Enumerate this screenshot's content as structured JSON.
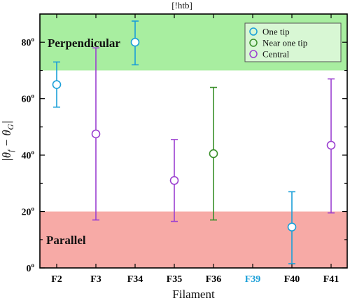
{
  "header_note": "[!htb]",
  "chart_data": {
    "type": "scatter",
    "xlabel": "Filament",
    "ylabel_main": "|θ",
    "ylabel_sub1": "f",
    "ylabel_mid": " − θ",
    "ylabel_sub2": "G",
    "ylabel_end": "|",
    "ylim": [
      0,
      90
    ],
    "yticks": [
      {
        "value": 0,
        "label": "0"
      },
      {
        "value": 20,
        "label": "20"
      },
      {
        "value": 40,
        "label": "40"
      },
      {
        "value": 60,
        "label": "60"
      },
      {
        "value": 80,
        "label": "80"
      }
    ],
    "ytick_suffix": "o",
    "categories": [
      "F2",
      "F3",
      "F34",
      "F35",
      "F36",
      "F39",
      "F40",
      "F41"
    ],
    "category_colors": [
      "#000000",
      "#000000",
      "#000000",
      "#000000",
      "#000000",
      "#1a9fd8",
      "#000000",
      "#000000"
    ],
    "bands": [
      {
        "label": "Perpendicular",
        "from": 70,
        "to": 90,
        "color": "#a8eea0"
      },
      {
        "label": "Parallel",
        "from": 0,
        "to": 20,
        "color": "#f7aaa6"
      }
    ],
    "series": [
      {
        "name": "One tip",
        "color": "#1a9fd8",
        "points": [
          {
            "category": "F2",
            "y": 65,
            "low": 57,
            "high": 73
          },
          {
            "category": "F34",
            "y": 80,
            "low": 72,
            "high": 87.5
          },
          {
            "category": "F40",
            "y": 14.5,
            "low": 1.5,
            "high": 27
          }
        ]
      },
      {
        "name": "Near one tip",
        "color": "#3a8f2a",
        "points": [
          {
            "category": "F36",
            "y": 40.5,
            "low": 17,
            "high": 64
          }
        ]
      },
      {
        "name": "Central",
        "color": "#9b3fd0",
        "points": [
          {
            "category": "F3",
            "y": 47.5,
            "low": 17,
            "high": 78
          },
          {
            "category": "F35",
            "y": 31,
            "low": 16.5,
            "high": 45.5
          },
          {
            "category": "F41",
            "y": 43.5,
            "low": 19.5,
            "high": 67
          }
        ]
      }
    ],
    "legend_position": "top-right"
  }
}
